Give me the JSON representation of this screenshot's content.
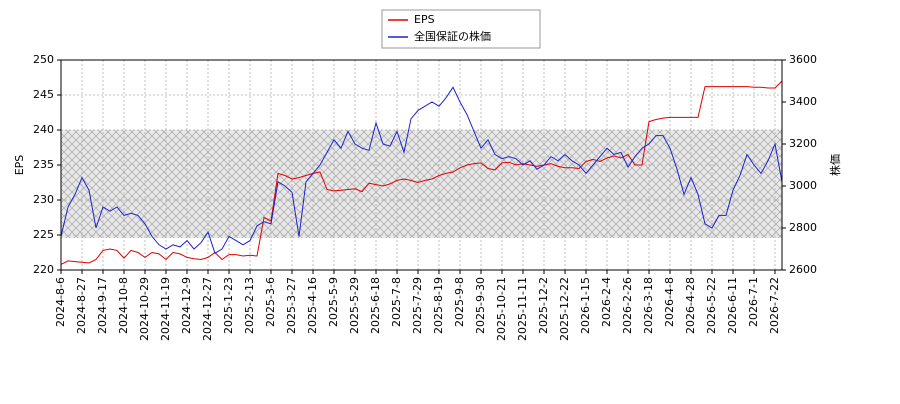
{
  "chart_data": {
    "type": "line",
    "legend": "top",
    "grid": true,
    "categories": [
      "2024-8-6",
      null,
      null,
      "2024-8-27",
      null,
      null,
      "2024-9-17",
      null,
      null,
      "2024-10-8",
      null,
      null,
      "2024-10-29",
      null,
      null,
      "2024-11-19",
      null,
      null,
      "2024-12-9",
      null,
      null,
      "2024-12-27",
      null,
      null,
      "2025-1-23",
      null,
      null,
      "2025-2-13",
      null,
      null,
      "2025-3-6",
      null,
      null,
      "2025-3-27",
      null,
      null,
      "2025-4-16",
      null,
      null,
      "2025-5-9",
      null,
      null,
      "2025-5-29",
      null,
      null,
      "2025-6-18",
      null,
      null,
      "2025-7-8",
      null,
      null,
      "2025-7-29",
      null,
      null,
      "2025-8-19",
      null,
      null,
      "2025-9-8",
      null,
      null,
      "2025-9-30",
      null,
      null,
      "2025-10-21",
      null,
      null,
      "2025-11-11",
      null,
      null,
      "2025-12-2",
      null,
      null,
      "2025-12-22",
      null,
      null,
      "2026-1-15",
      null,
      null,
      "2026-2-4",
      null,
      null,
      "2026-2-26",
      null,
      null,
      "2026-3-18",
      null,
      null,
      "2026-4-8",
      null,
      null,
      "2026-4-28",
      null,
      null,
      "2026-5-22",
      null,
      null,
      "2026-6-11",
      null,
      null,
      "2026-7-1",
      null,
      null,
      "2026-7-22",
      null
    ],
    "ylabel": "EPS",
    "y2label": "株価",
    "ylim": [
      220,
      250
    ],
    "yticks": [
      220,
      225,
      230,
      235,
      240,
      245,
      250
    ],
    "y2lim": [
      2600,
      3600
    ],
    "y2ticks": [
      2600,
      2800,
      3000,
      3200,
      3400,
      3600
    ],
    "series": [
      {
        "name": "EPS",
        "color": "#e00000",
        "values": [
          220.8,
          221.3,
          221.2,
          221.1,
          221.0,
          221.5,
          222.8,
          223.0,
          222.8,
          221.7,
          222.8,
          222.5,
          221.8,
          222.5,
          222.3,
          221.5,
          222.5,
          222.3,
          221.8,
          221.6,
          221.5,
          221.8,
          222.5,
          221.5,
          222.2,
          222.2,
          222.0,
          222.1,
          222.0,
          227.5,
          227.0,
          233.8,
          233.5,
          233.0,
          233.2,
          233.5,
          233.8,
          234.0,
          231.5,
          231.3,
          231.4,
          231.5,
          231.6,
          231.2,
          232.4,
          232.2,
          232.0,
          232.3,
          232.8,
          233.0,
          232.8,
          232.5,
          232.8,
          233.0,
          233.5,
          233.8,
          234.0,
          234.6,
          235.0,
          235.2,
          235.3,
          234.5,
          234.3,
          235.3,
          235.4,
          235.0,
          235.2,
          235.0,
          234.8,
          235.0,
          235.2,
          234.8,
          234.6,
          234.6,
          234.5,
          235.5,
          235.8,
          235.5,
          236.0,
          236.3,
          236.0,
          236.5,
          235.0,
          235.0,
          241.2,
          241.5,
          241.7,
          241.8,
          241.8,
          241.8,
          241.8,
          241.8,
          246.2,
          246.2,
          246.2,
          246.2,
          246.2,
          246.2,
          246.2,
          246.1,
          246.1,
          246.0,
          246.0,
          247.0
        ]
      },
      {
        "name": "全国保証の株価",
        "color": "#2020d0",
        "axis": "y2",
        "values": [
          2760,
          2900,
          2960,
          3040,
          2980,
          2800,
          2900,
          2880,
          2900,
          2860,
          2870,
          2860,
          2820,
          2760,
          2720,
          2700,
          2720,
          2710,
          2740,
          2700,
          2730,
          2780,
          2680,
          2700,
          2760,
          2740,
          2720,
          2740,
          2810,
          2830,
          2820,
          3020,
          3000,
          2970,
          2760,
          3020,
          3060,
          3100,
          3160,
          3220,
          3180,
          3260,
          3200,
          3180,
          3170,
          3300,
          3200,
          3190,
          3260,
          3160,
          3320,
          3360,
          3380,
          3400,
          3380,
          3420,
          3470,
          3400,
          3340,
          3260,
          3180,
          3220,
          3150,
          3130,
          3140,
          3130,
          3100,
          3120,
          3080,
          3100,
          3140,
          3120,
          3150,
          3120,
          3100,
          3060,
          3100,
          3140,
          3180,
          3150,
          3160,
          3090,
          3140,
          3180,
          3200,
          3240,
          3240,
          3180,
          3080,
          2960,
          3040,
          2960,
          2820,
          2800,
          2860,
          2860,
          2980,
          3050,
          3150,
          3100,
          3060,
          3120,
          3200,
          3020
        ]
      }
    ]
  }
}
